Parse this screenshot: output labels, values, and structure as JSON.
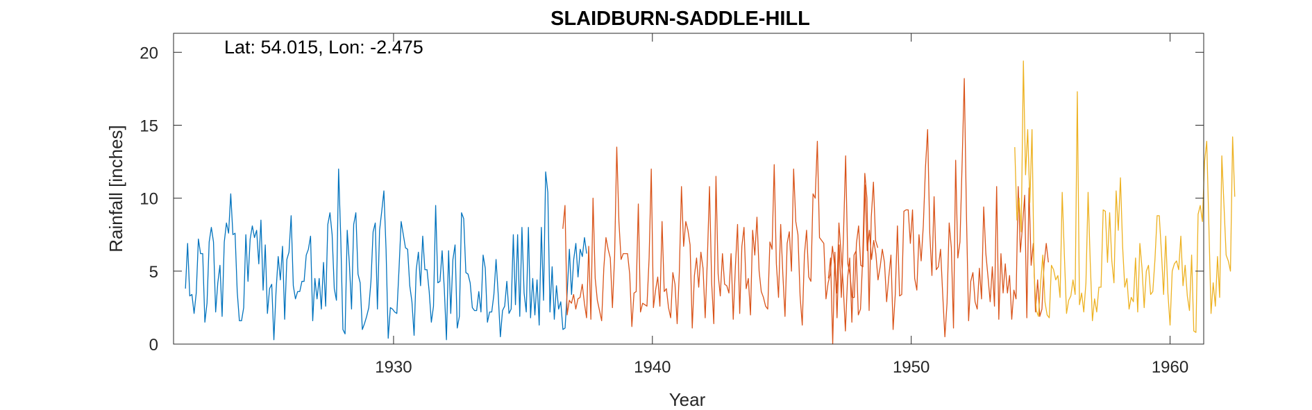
{
  "chart_data": {
    "type": "line",
    "title": "SLAIDBURN-SADDLE-HILL",
    "xlabel": "Year",
    "ylabel": "Rainfall [inches]",
    "annotation": "Lat: 54.015, Lon: -2.475",
    "xlim": [
      1921.5,
      1961.3
    ],
    "ylim": [
      0,
      21.3
    ],
    "xticks": [
      1930,
      1940,
      1950,
      1960
    ],
    "yticks": [
      0,
      5,
      10,
      15,
      20
    ],
    "grid": false,
    "legend": "none",
    "colors": {
      "axis": "#262626"
    },
    "series": [
      {
        "color": "#0072BD",
        "x_start": 1921.96,
        "x_step": 0.0833333,
        "values": [
          3.8,
          6.9,
          3.3,
          3.4,
          2.1,
          3.5,
          7.2,
          6.2,
          6.2,
          1.5,
          2.8,
          7,
          8,
          7,
          2.2,
          4.2,
          5.4,
          1.9,
          7,
          8.3,
          7.6,
          10.3,
          7.5,
          7.6,
          3.6,
          1.6,
          1.6,
          2.5,
          7.5,
          4.3,
          7.2,
          8.1,
          7.3,
          7.8,
          5.5,
          8.5,
          3.7,
          6.8,
          2.1,
          3.8,
          4.1,
          0.3,
          3.6,
          6,
          4.4,
          6.7,
          1.7,
          5.8,
          6.3,
          8.8,
          4,
          3.1,
          3.6,
          3.6,
          4.3,
          4.3,
          6.1,
          6.5,
          7.4,
          1.6,
          4.5,
          3.1,
          4.5,
          2.4,
          5.6,
          2.6,
          8.2,
          9,
          7.5,
          3.8,
          3,
          12,
          7.3,
          1,
          0.7,
          7.8,
          5.5,
          2.4,
          8.2,
          9,
          4.8,
          4.2,
          1,
          1.4,
          1.9,
          2.5,
          4.3,
          7.7,
          8.3,
          2.4,
          7.8,
          9.1,
          10.5,
          6.5,
          0.4,
          2.5,
          2.4,
          2.2,
          2.1,
          5.1,
          8.4,
          7.5,
          6.6,
          6.5,
          4,
          2.9,
          0.6,
          5.1,
          6.3,
          4,
          7.4,
          5.1,
          5.1,
          3.6,
          1.5,
          2.6,
          9.5,
          4.2,
          4.3,
          6.4,
          3.8,
          0.3,
          6.4,
          2.1,
          5.8,
          6.8,
          1.1,
          1.9,
          9,
          8.6,
          4.9,
          4.8,
          4.2,
          2.5,
          2.3,
          2.3,
          3.6,
          2.2,
          6.1,
          5.2,
          1.5,
          2.2,
          2.2,
          3.4,
          5.8,
          3.4,
          0.5,
          2.3,
          2.6,
          4.3,
          2.1,
          2.4,
          7.5,
          2.7,
          7.5,
          1.9,
          8,
          3.5,
          2.2,
          8,
          1.8,
          4.5,
          2,
          4.4,
          1.3,
          8,
          3,
          11.8,
          10.4,
          2.2,
          5.3,
          1.7,
          4,
          2.4,
          2.9,
          1,
          1.1,
          3.6,
          6.5,
          3.4,
          5.8,
          6.9,
          4.6,
          6.5,
          6,
          7.3,
          6.2
        ]
      },
      {
        "color": "#D95319",
        "x_start": 1936.54,
        "x_step": 0.0833333,
        "values": [
          7.9,
          9.5,
          2,
          3,
          2.8,
          3.4,
          2.4,
          3.1,
          3.2,
          4.1,
          2.8,
          1.8,
          6.7,
          1.7,
          10,
          4.5,
          3,
          2.3,
          1.6,
          5.2,
          7.3,
          6.5,
          5.9,
          2.5,
          6,
          13.5,
          8.4,
          5.8,
          6.2,
          6.2,
          6.2,
          4.8,
          1.2,
          3.5,
          3.6,
          9.6,
          2.2,
          2.8,
          2.7,
          2.6,
          5.9,
          12,
          2.5,
          3.7,
          4.6,
          2.6,
          8.4,
          3.6,
          3.8,
          2.5,
          1.8,
          4.9,
          4.1,
          1.4,
          4.9,
          10.8,
          6.7,
          8.4,
          7.8,
          6.8,
          1.1,
          4.7,
          5.9,
          3.9,
          6.3,
          5.2,
          1.8,
          5.8,
          10.8,
          4.2,
          1.4,
          11.5,
          4.8,
          3.3,
          6.2,
          4.1,
          4,
          3.5,
          6.2,
          1.7,
          5.3,
          8.2,
          2.1,
          6.7,
          8,
          3.8,
          4.5,
          2,
          7.8,
          6.1,
          8.7,
          5,
          3.6,
          3.2,
          2.6,
          2.4,
          7,
          6.5,
          12.3,
          5.5,
          3.2,
          8.2,
          4.8,
          1.9,
          6.9,
          7.7,
          5,
          12,
          8.4,
          7.5,
          3.3,
          1.3,
          6.1,
          7.8,
          4.6,
          4.3,
          10.3,
          10,
          13.9,
          7.3,
          7.1,
          6.9,
          3.1,
          4.2,
          4.8,
          6.7,
          5.4,
          3.5,
          8.3,
          6.2,
          4,
          0.9,
          4.5,
          5.9,
          1.5,
          6.1,
          6.4,
          2,
          2.4,
          5.8,
          11.7,
          10,
          2.3,
          8.7,
          11.1,
          7.1,
          6.6
        ]
      },
      {
        "color": "#D95319",
        "x_start": 1946.8,
        "x_step": 0.0833333,
        "values": [
          4.5,
          5.9,
          0,
          6.3,
          1.8,
          6.8,
          3.2,
          7.5,
          12.9,
          5.5,
          4.8,
          3.2,
          3.2,
          6.9,
          8.1,
          5.4,
          5.3,
          10.9,
          6.4,
          7.8,
          5.8,
          7.1,
          6.2,
          4.4,
          5.3,
          6.5,
          5.6,
          2.9,
          4.6,
          6.1,
          1,
          3.4,
          8.1,
          3.3,
          3.4,
          9.1,
          9.2,
          9.2,
          6.9,
          9.2,
          4.5,
          3.7,
          7.5,
          5.7,
          8.1,
          12.1,
          14.7,
          7.6,
          4.7,
          10.1,
          5.1,
          5.3,
          6.5,
          3.4,
          0.5,
          2.8,
          8.3,
          6.6,
          1.1,
          12.6,
          5.9,
          7,
          12.4,
          18.2,
          8.9,
          1.6,
          4.3,
          4.9,
          2.9,
          2.4,
          5.2,
          3.1,
          9.4,
          6.2,
          4.6,
          2.9,
          5.3,
          2.6,
          10.8,
          1.7,
          6.2,
          3.5,
          5.5,
          3.5,
          4.7,
          1.7,
          3.7,
          3.1,
          10.8,
          6.3,
          8.1,
          10.2,
          1.8,
          10.7,
          5.4,
          6.9,
          2.2,
          4.4,
          1.9,
          2.4,
          5.5,
          6.9,
          5.6
        ]
      },
      {
        "color": "#EDB120",
        "x_start": 1954.0,
        "x_step": 0.0833333,
        "values": [
          13.5,
          8.5,
          10,
          7.7,
          19.4,
          11.6,
          14.7,
          9.7,
          14.7,
          4.7,
          2.3,
          1.9,
          4.2,
          6.1,
          2.9,
          2,
          1.8,
          5.4,
          5.1,
          4.4,
          4.7,
          3.2,
          10.4,
          6.1,
          2.1,
          3,
          3.3,
          4.4,
          3.4,
          17.3,
          2.7,
          3.5,
          2.2,
          4.2,
          10.4,
          5.6,
          1.6,
          3.1,
          2.2,
          3.9,
          3.9,
          9.2,
          9.1,
          5.6,
          9,
          5.7,
          4.2,
          10.5,
          7.8,
          11.4,
          6.7,
          3.9,
          4.5,
          2.4,
          3.2,
          2.9,
          5.9,
          2.2,
          6.9,
          5.2,
          2.5,
          5,
          5.4,
          3.4,
          3.6,
          5.8,
          8.8,
          8.8,
          6.3,
          3.4,
          7.4,
          3.5,
          1.3,
          5,
          5.5,
          5.7,
          5.1,
          7.4,
          4,
          5.4,
          3.3,
          2.3,
          6.1,
          0.9,
          0.8,
          8.9,
          9.5,
          8.4,
          12.5,
          13.9,
          8.1,
          2.1,
          4.2,
          2.6,
          6,
          3.2,
          12.9,
          9.5,
          6.1,
          5.7,
          5,
          14.2,
          10.1
        ]
      }
    ]
  }
}
